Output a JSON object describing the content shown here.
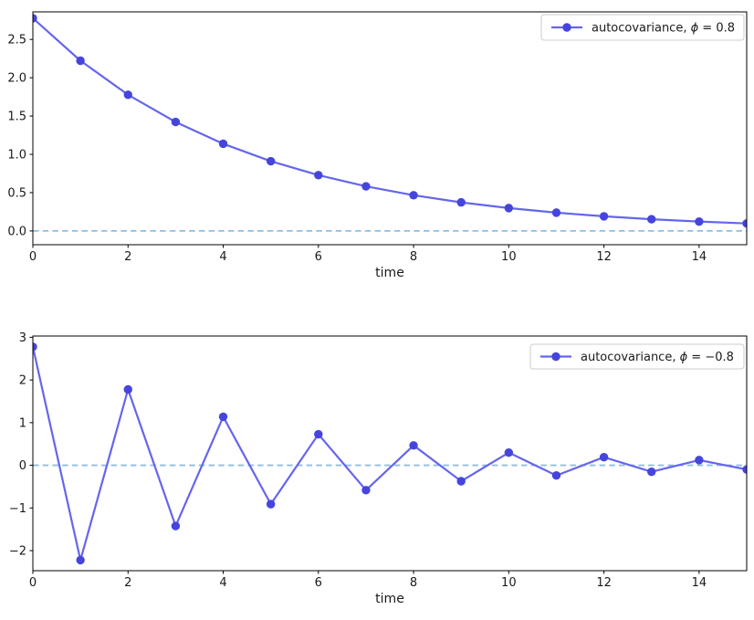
{
  "figure": {
    "background": "#ffffff"
  },
  "colors": {
    "series_line": "#6565ee",
    "marker_fill": "#4545dd",
    "zero_line": "#92bedc",
    "spine": "#000000",
    "text": "#1a1a1a",
    "legend_border": "#cccccc",
    "legend_bg": "#ffffff"
  },
  "chart_data": [
    {
      "type": "line",
      "title": "",
      "xlabel": "time",
      "ylabel": "",
      "legend_label": "autocovariance, ϕ = 0.8",
      "legend_position": "upper right",
      "grid": false,
      "zero_line": true,
      "xlim": [
        0,
        15
      ],
      "ylim": [
        -0.18,
        2.86
      ],
      "xticks": {
        "values": [
          0,
          2,
          4,
          6,
          8,
          10,
          12,
          14
        ],
        "labels": [
          "0",
          "2",
          "4",
          "6",
          "8",
          "10",
          "12",
          "14"
        ]
      },
      "yticks": {
        "values": [
          0.0,
          0.5,
          1.0,
          1.5,
          2.0,
          2.5
        ],
        "labels": [
          "0.0",
          "0.5",
          "1.0",
          "1.5",
          "2.0",
          "2.5"
        ]
      },
      "x": [
        0,
        1,
        2,
        3,
        4,
        5,
        6,
        7,
        8,
        9,
        10,
        11,
        12,
        13,
        14,
        15
      ],
      "series": [
        {
          "name": "autocovariance, ϕ = 0.8",
          "values": [
            2.7778,
            2.2222,
            1.7778,
            1.4222,
            1.1378,
            0.9102,
            0.7282,
            0.5825,
            0.466,
            0.3728,
            0.2983,
            0.2386,
            0.1909,
            0.1527,
            0.1222,
            0.0977
          ]
        }
      ]
    },
    {
      "type": "line",
      "title": "",
      "xlabel": "time",
      "ylabel": "",
      "legend_label": "autocovariance, ϕ = −0.8",
      "legend_position": "upper right",
      "grid": false,
      "zero_line": true,
      "xlim": [
        0,
        15
      ],
      "ylim": [
        -2.47,
        3.03
      ],
      "xticks": {
        "values": [
          0,
          2,
          4,
          6,
          8,
          10,
          12,
          14
        ],
        "labels": [
          "0",
          "2",
          "4",
          "6",
          "8",
          "10",
          "12",
          "14"
        ]
      },
      "yticks": {
        "values": [
          3,
          2,
          1,
          0,
          -1,
          -2
        ],
        "labels": [
          "3",
          "2",
          "1",
          "0",
          "−1",
          "−2"
        ]
      },
      "x": [
        0,
        1,
        2,
        3,
        4,
        5,
        6,
        7,
        8,
        9,
        10,
        11,
        12,
        13,
        14,
        15
      ],
      "series": [
        {
          "name": "autocovariance, ϕ = −0.8",
          "values": [
            2.7778,
            -2.2222,
            1.7778,
            -1.4222,
            1.1378,
            -0.9102,
            0.7282,
            -0.5825,
            0.466,
            -0.3728,
            0.2983,
            -0.2386,
            0.1909,
            -0.1527,
            0.1222,
            -0.0977
          ]
        }
      ]
    }
  ]
}
